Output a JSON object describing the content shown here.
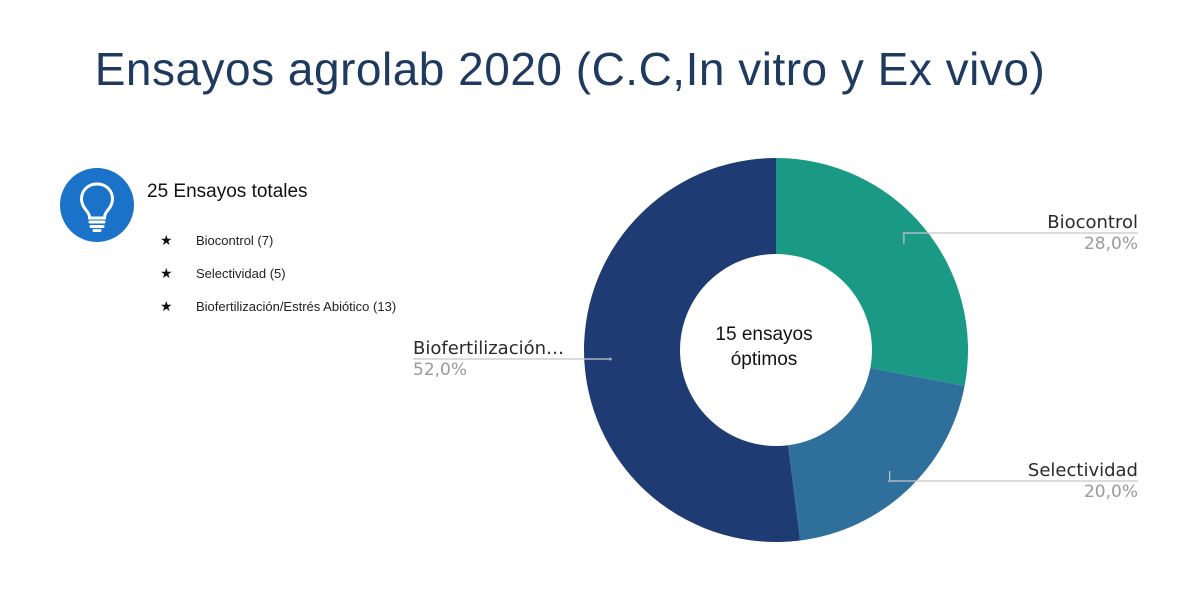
{
  "title": "Ensayos agrolab 2020 (C.C,In vitro y Ex vivo)",
  "info": {
    "icon": "lightbulb-icon",
    "icon_color": "#1a73c8",
    "heading": "25 Ensayos totales",
    "items": [
      {
        "bullet": "★",
        "label": "Biocontrol (7)"
      },
      {
        "bullet": "★",
        "label": "Selectividad  (5)"
      },
      {
        "bullet": "★",
        "label": "Biofertilización/Estrés Abiótico  (13)"
      }
    ]
  },
  "chart_data": {
    "type": "pie",
    "donut": true,
    "center_text": [
      "15 ensayos",
      "óptimos"
    ],
    "slices": [
      {
        "label": "Biocontrol",
        "value": 28.0,
        "value_label": "28,0%",
        "color": "#1a9985"
      },
      {
        "label": "Selectividad",
        "value": 20.0,
        "value_label": "20,0%",
        "color": "#2e6f9b"
      },
      {
        "label": "Biofertilización…",
        "value": 52.0,
        "value_label": "52,0%",
        "color": "#1f3b73"
      }
    ]
  }
}
